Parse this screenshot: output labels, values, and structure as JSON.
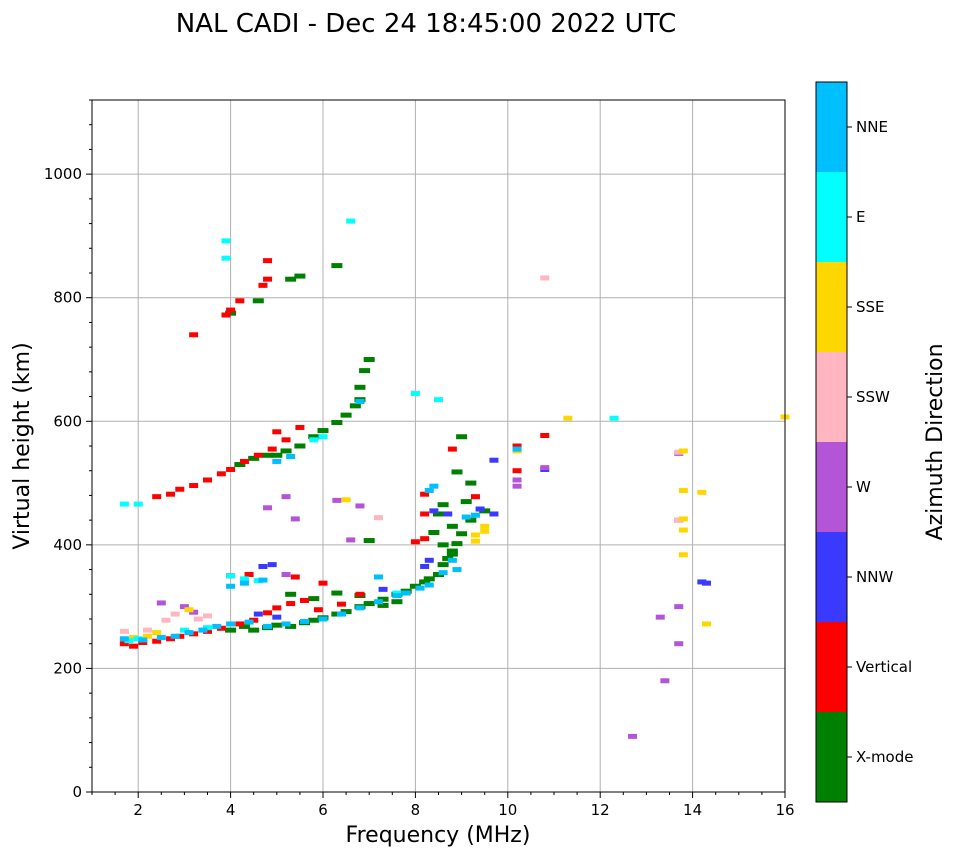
{
  "chart_data": {
    "type": "scatter",
    "title": "NAL CADI - Dec 24 18:45:00 2022 UTC",
    "xlabel": "Frequency (MHz)",
    "ylabel": "Virtual height (km)",
    "xlim": [
      1,
      16
    ],
    "ylim": [
      0,
      1120
    ],
    "xticks": [
      2,
      4,
      6,
      8,
      10,
      12,
      14,
      16
    ],
    "yticks": [
      0,
      200,
      400,
      600,
      800,
      1000
    ],
    "grid": true,
    "colorbar": {
      "label": "Azimuth Direction",
      "entries": [
        {
          "name": "X-mode",
          "color": "#008000"
        },
        {
          "name": "Vertical",
          "color": "#ff0000"
        },
        {
          "name": "NNW",
          "color": "#3a3aff"
        },
        {
          "name": "W",
          "color": "#b455d8"
        },
        {
          "name": "SSW",
          "color": "#ffb6c1"
        },
        {
          "name": "SSE",
          "color": "#ffd700"
        },
        {
          "name": "E",
          "color": "#00ffff"
        },
        {
          "name": "NNE",
          "color": "#00bfff"
        }
      ]
    },
    "series": [
      {
        "name": "X-mode",
        "points": [
          [
            4.0,
            262
          ],
          [
            4.3,
            268
          ],
          [
            4.5,
            262
          ],
          [
            4.8,
            266
          ],
          [
            5.0,
            270
          ],
          [
            5.3,
            268
          ],
          [
            5.6,
            274
          ],
          [
            5.8,
            278
          ],
          [
            6.0,
            282
          ],
          [
            6.3,
            288
          ],
          [
            6.5,
            292
          ],
          [
            6.8,
            300
          ],
          [
            7.0,
            305
          ],
          [
            7.3,
            312
          ],
          [
            7.6,
            320
          ],
          [
            7.8,
            325
          ],
          [
            8.0,
            333
          ],
          [
            8.2,
            340
          ],
          [
            8.3,
            345
          ],
          [
            8.5,
            352
          ],
          [
            8.6,
            368
          ],
          [
            8.7,
            378
          ],
          [
            8.8,
            390
          ],
          [
            8.9,
            402
          ],
          [
            9.0,
            418
          ],
          [
            9.2,
            440
          ],
          [
            9.5,
            455
          ],
          [
            8.6,
            400
          ],
          [
            8.4,
            420
          ],
          [
            8.8,
            385
          ],
          [
            9.1,
            470
          ],
          [
            8.8,
            430
          ],
          [
            9.0,
            575
          ],
          [
            8.9,
            518
          ],
          [
            9.2,
            500
          ],
          [
            7.0,
            407
          ],
          [
            8.6,
            465
          ],
          [
            8.5,
            450
          ],
          [
            4.2,
            530
          ],
          [
            4.5,
            540
          ],
          [
            4.8,
            545
          ],
          [
            5.0,
            545
          ],
          [
            5.2,
            552
          ],
          [
            5.5,
            560
          ],
          [
            5.8,
            575
          ],
          [
            6.0,
            585
          ],
          [
            6.3,
            598
          ],
          [
            6.5,
            610
          ],
          [
            6.7,
            625
          ],
          [
            6.8,
            655
          ],
          [
            6.9,
            682
          ],
          [
            7.0,
            700
          ],
          [
            6.8,
            635
          ],
          [
            4.6,
            795
          ],
          [
            4.0,
            775
          ],
          [
            5.5,
            835
          ],
          [
            5.3,
            830
          ],
          [
            6.3,
            852
          ],
          [
            5.3,
            320
          ],
          [
            5.8,
            313
          ],
          [
            6.3,
            322
          ],
          [
            6.8,
            318
          ],
          [
            7.3,
            302
          ],
          [
            7.6,
            308
          ]
        ]
      },
      {
        "name": "Vertical",
        "points": [
          [
            1.7,
            240
          ],
          [
            1.9,
            236
          ],
          [
            2.1,
            242
          ],
          [
            2.4,
            244
          ],
          [
            2.7,
            248
          ],
          [
            2.9,
            252
          ],
          [
            3.2,
            256
          ],
          [
            3.5,
            260
          ],
          [
            3.8,
            265
          ],
          [
            4.2,
            272
          ],
          [
            4.5,
            278
          ],
          [
            4.8,
            290
          ],
          [
            5.0,
            298
          ],
          [
            5.3,
            305
          ],
          [
            5.6,
            310
          ],
          [
            5.9,
            295
          ],
          [
            6.4,
            304
          ],
          [
            2.4,
            478
          ],
          [
            2.7,
            482
          ],
          [
            2.9,
            490
          ],
          [
            3.2,
            496
          ],
          [
            3.5,
            505
          ],
          [
            3.8,
            515
          ],
          [
            4.0,
            522
          ],
          [
            4.3,
            535
          ],
          [
            4.6,
            545
          ],
          [
            4.9,
            555
          ],
          [
            5.2,
            570
          ],
          [
            5.5,
            590
          ],
          [
            5.0,
            583
          ],
          [
            4.0,
            350
          ],
          [
            4.4,
            352
          ],
          [
            5.4,
            348
          ],
          [
            6.0,
            338
          ],
          [
            6.8,
            320
          ],
          [
            8.0,
            405
          ],
          [
            8.2,
            410
          ],
          [
            8.2,
            450
          ],
          [
            8.2,
            482
          ],
          [
            9.3,
            478
          ],
          [
            8.8,
            555
          ],
          [
            10.2,
            560
          ],
          [
            10.2,
            520
          ],
          [
            10.8,
            577
          ],
          [
            3.2,
            740
          ],
          [
            3.9,
            772
          ],
          [
            4.0,
            780
          ],
          [
            4.2,
            795
          ],
          [
            4.8,
            830
          ],
          [
            4.8,
            860
          ],
          [
            4.7,
            820
          ]
        ]
      },
      {
        "name": "NNW",
        "points": [
          [
            4.7,
            365
          ],
          [
            4.9,
            368
          ],
          [
            8.4,
            455
          ],
          [
            8.7,
            450
          ],
          [
            9.7,
            450
          ],
          [
            9.4,
            458
          ],
          [
            8.2,
            365
          ],
          [
            8.3,
            375
          ],
          [
            7.3,
            328
          ],
          [
            9.7,
            537
          ],
          [
            10.8,
            522
          ],
          [
            14.2,
            340
          ],
          [
            14.3,
            338
          ],
          [
            4.6,
            288
          ],
          [
            5.0,
            283
          ]
        ]
      },
      {
        "name": "W",
        "points": [
          [
            2.5,
            306
          ],
          [
            3.0,
            300
          ],
          [
            3.2,
            291
          ],
          [
            5.2,
            478
          ],
          [
            5.4,
            442
          ],
          [
            4.8,
            460
          ],
          [
            6.3,
            472
          ],
          [
            6.8,
            463
          ],
          [
            6.6,
            408
          ],
          [
            10.2,
            505
          ],
          [
            10.2,
            495
          ],
          [
            10.8,
            525
          ],
          [
            13.3,
            283
          ],
          [
            13.7,
            300
          ],
          [
            13.7,
            240
          ],
          [
            13.4,
            180
          ],
          [
            12.7,
            90
          ],
          [
            13.7,
            440
          ],
          [
            13.7,
            548
          ],
          [
            5.2,
            352
          ]
        ]
      },
      {
        "name": "SSW",
        "points": [
          [
            1.7,
            260
          ],
          [
            2.2,
            262
          ],
          [
            2.6,
            278
          ],
          [
            2.8,
            288
          ],
          [
            3.3,
            280
          ],
          [
            3.5,
            285
          ],
          [
            7.2,
            444
          ],
          [
            10.8,
            832
          ],
          [
            13.7,
            550
          ],
          [
            13.7,
            440
          ]
        ]
      },
      {
        "name": "SSE",
        "points": [
          [
            1.9,
            250
          ],
          [
            2.2,
            252
          ],
          [
            2.4,
            258
          ],
          [
            3.1,
            295
          ],
          [
            6.5,
            473
          ],
          [
            9.5,
            430
          ],
          [
            9.5,
            422
          ],
          [
            9.3,
            416
          ],
          [
            9.3,
            406
          ],
          [
            10.2,
            552
          ],
          [
            11.3,
            605
          ],
          [
            13.8,
            552
          ],
          [
            13.8,
            488
          ],
          [
            14.2,
            485
          ],
          [
            13.8,
            442
          ],
          [
            13.8,
            424
          ],
          [
            13.8,
            384
          ],
          [
            14.3,
            272
          ],
          [
            16.0,
            607
          ]
        ]
      },
      {
        "name": "E",
        "points": [
          [
            1.7,
            466
          ],
          [
            2.0,
            466
          ],
          [
            1.8,
            245
          ],
          [
            2.0,
            248
          ],
          [
            3.0,
            262
          ],
          [
            3.5,
            266
          ],
          [
            3.9,
            892
          ],
          [
            3.9,
            864
          ],
          [
            4.0,
            350
          ],
          [
            4.3,
            345
          ],
          [
            4.6,
            342
          ],
          [
            5.8,
            570
          ],
          [
            6.0,
            575
          ],
          [
            6.6,
            924
          ],
          [
            8.0,
            645
          ],
          [
            8.5,
            635
          ],
          [
            12.3,
            605
          ],
          [
            7.6,
            322
          ]
        ]
      },
      {
        "name": "NNE",
        "points": [
          [
            1.7,
            248
          ],
          [
            2.1,
            246
          ],
          [
            2.5,
            250
          ],
          [
            2.8,
            252
          ],
          [
            3.1,
            258
          ],
          [
            3.4,
            262
          ],
          [
            3.7,
            268
          ],
          [
            4.0,
            272
          ],
          [
            4.4,
            275
          ],
          [
            4.8,
            268
          ],
          [
            5.2,
            272
          ],
          [
            5.6,
            276
          ],
          [
            6.0,
            280
          ],
          [
            6.4,
            288
          ],
          [
            6.8,
            298
          ],
          [
            7.2,
            308
          ],
          [
            7.6,
            318
          ],
          [
            7.8,
            322
          ],
          [
            8.1,
            330
          ],
          [
            8.3,
            335
          ],
          [
            8.6,
            355
          ],
          [
            8.9,
            360
          ],
          [
            8.8,
            375
          ],
          [
            4.0,
            333
          ],
          [
            4.3,
            338
          ],
          [
            4.7,
            343
          ],
          [
            7.2,
            348
          ],
          [
            8.3,
            488
          ],
          [
            6.8,
            632
          ],
          [
            9.1,
            445
          ],
          [
            9.3,
            448
          ],
          [
            5.3,
            543
          ],
          [
            5.0,
            535
          ],
          [
            10.2,
            555
          ],
          [
            8.4,
            495
          ]
        ]
      }
    ]
  }
}
